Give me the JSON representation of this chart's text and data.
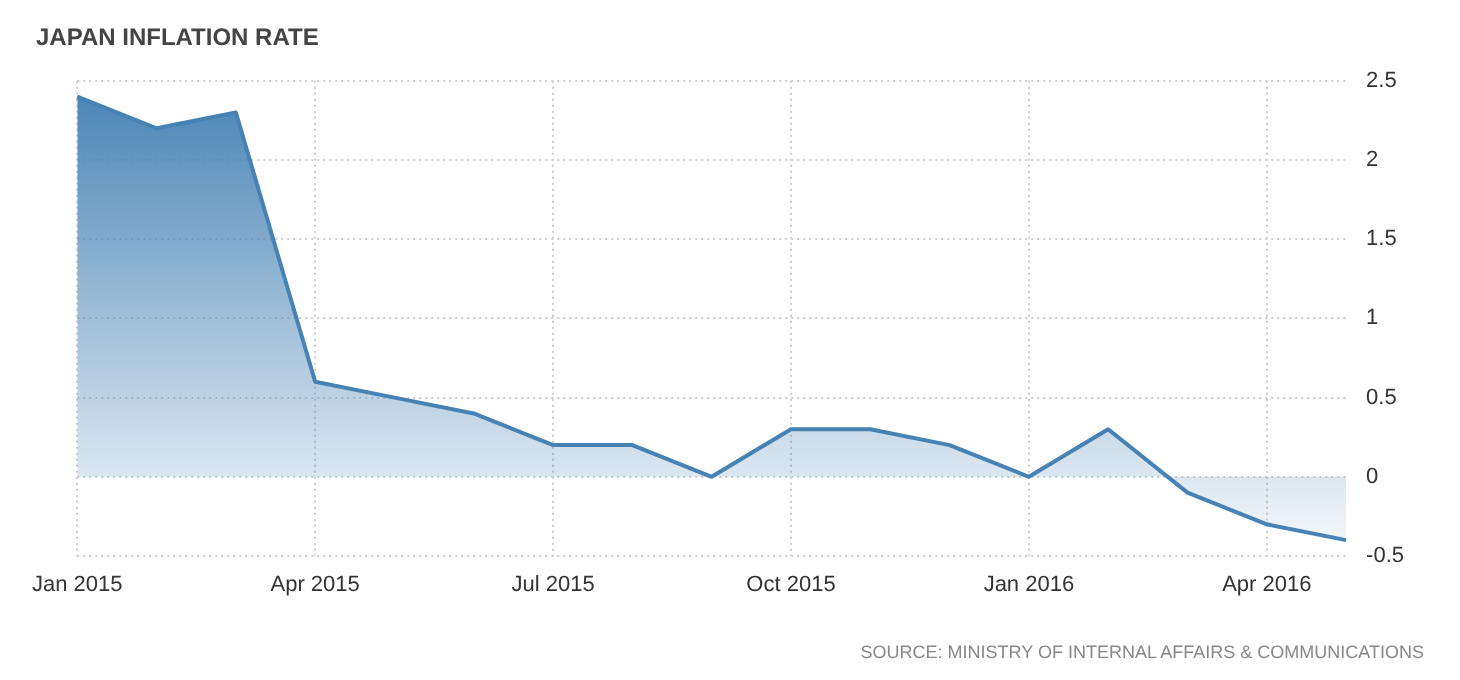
{
  "chart_data": {
    "type": "area",
    "title": "JAPAN INFLATION RATE",
    "categories": [
      "Jan 2015",
      null,
      null,
      "Apr 2015",
      null,
      null,
      "Jul 2015",
      null,
      null,
      "Oct 2015",
      null,
      null,
      "Jan 2016",
      null,
      null,
      "Apr 2016",
      null
    ],
    "series": [
      {
        "color": "#4682b4",
        "values": [
          2.4,
          2.2,
          2.3,
          0.6,
          0.5,
          0.4,
          0.2,
          0.2,
          0.0,
          0.3,
          0.3,
          0.2,
          0.0,
          0.3,
          -0.1,
          -0.3,
          -0.4
        ]
      }
    ],
    "ylim": [
      -0.5,
      2.5
    ],
    "yticks": [
      -0.5,
      0,
      0.5,
      1,
      1.5,
      2,
      2.5
    ],
    "grid": true,
    "legend": false,
    "marker": "none",
    "line_style": "solid",
    "annotations": [
      "SOURCE: MINISTRY OF INTERNAL AFFAIRS & COMMUNICATIONS"
    ]
  }
}
